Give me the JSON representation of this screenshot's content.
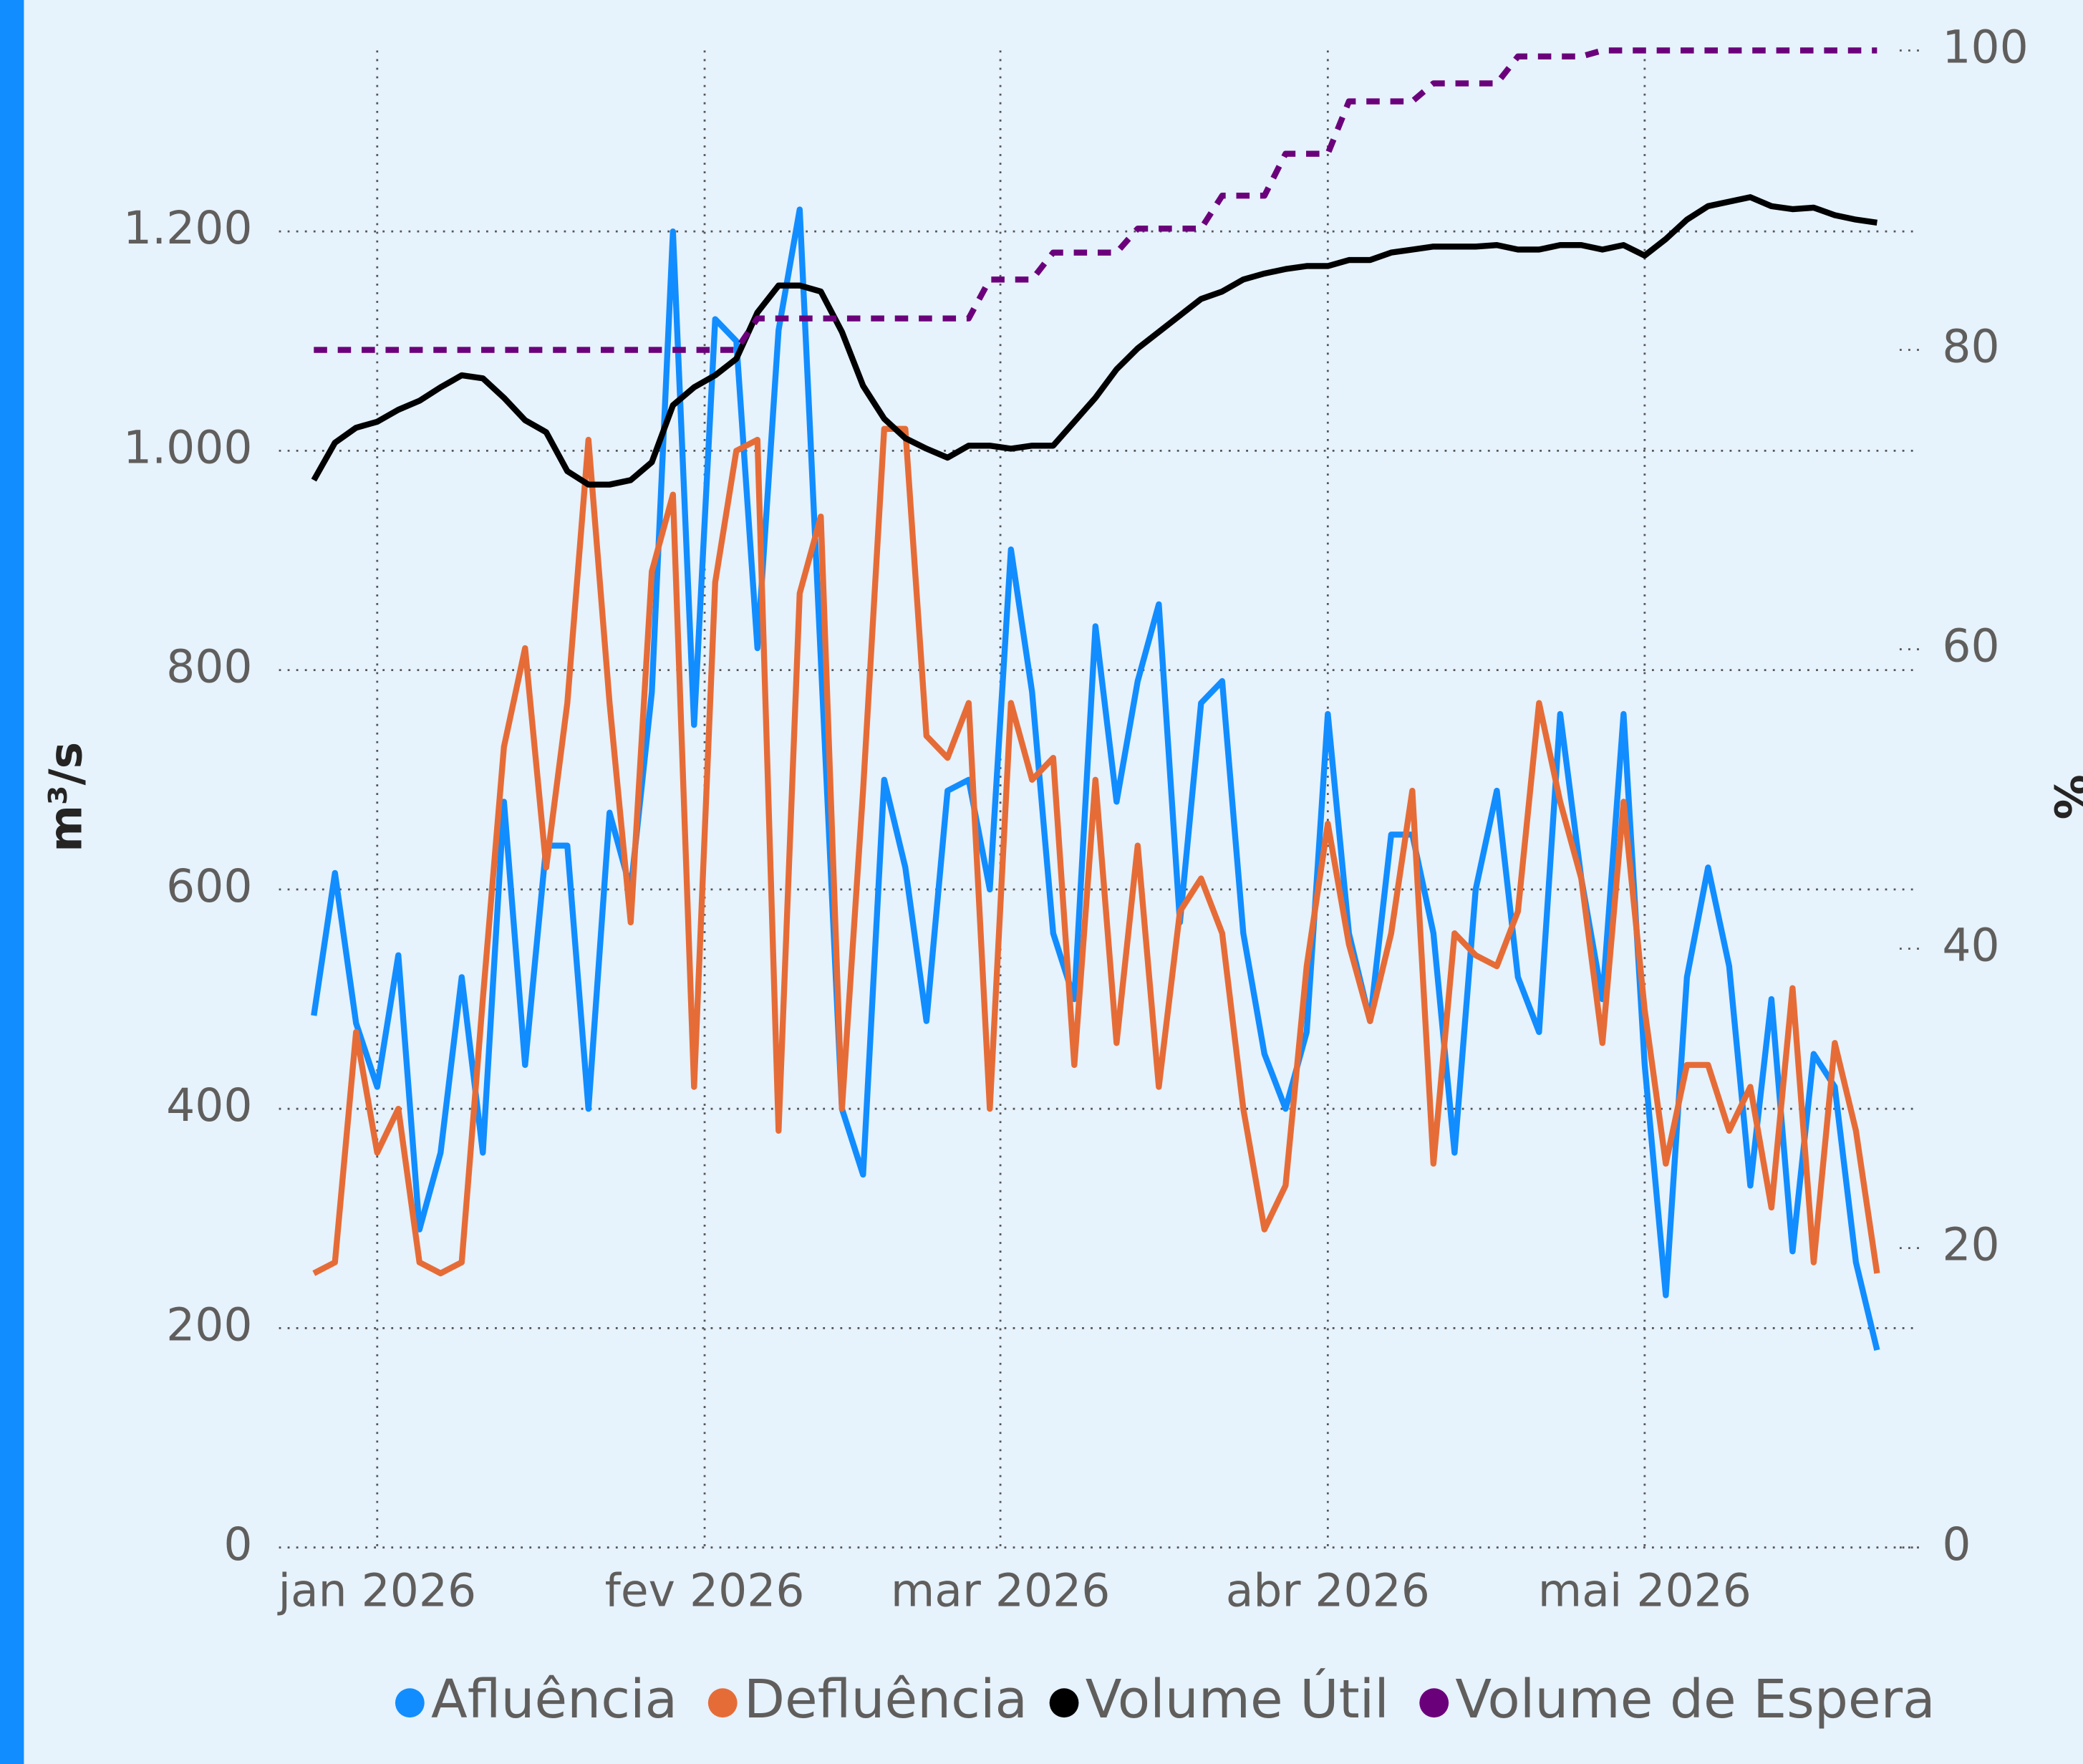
{
  "chart_data": {
    "type": "line",
    "x": [
      -6,
      -4,
      -2,
      0,
      2,
      4,
      6,
      8,
      10,
      12,
      14,
      16,
      18,
      20,
      22,
      24,
      26,
      28,
      30,
      32,
      34,
      36,
      38,
      40,
      42,
      44,
      46,
      48,
      50,
      52,
      54,
      56,
      58,
      60,
      62,
      64,
      66,
      68,
      70,
      72,
      74,
      76,
      78,
      80,
      82,
      84,
      86,
      88,
      90,
      92,
      94,
      96,
      98,
      100,
      102,
      104,
      106,
      108,
      110,
      112,
      114,
      116,
      118,
      120,
      122,
      124,
      126,
      128,
      130,
      132,
      134,
      136,
      138,
      140,
      142
    ],
    "xlim": [
      -9.3,
      145.4
    ],
    "xticks": [
      {
        "value": 0,
        "label": "jan 2026"
      },
      {
        "value": 31,
        "label": "fev 2026"
      },
      {
        "value": 59,
        "label": "mar 2026"
      },
      {
        "value": 90,
        "label": "abr 2026"
      },
      {
        "value": 120,
        "label": "mai 2026"
      }
    ],
    "ylabel": "m³/s",
    "y2label": "%",
    "ylim": [
      0,
      1365
    ],
    "yticks": [
      0,
      200,
      400,
      600,
      800,
      {
        "value": 1000,
        "label": "1.000"
      },
      {
        "value": 1200,
        "label": "1.200"
      }
    ],
    "y2lim": [
      0,
      100
    ],
    "y2ticks": [
      0,
      20,
      40,
      60,
      80,
      100
    ],
    "grid": true,
    "legend": "bottom",
    "series": [
      {
        "name": "Afluência",
        "color": "#118dff",
        "values": [
          485,
          615,
          478,
          420,
          540,
          290,
          360,
          520,
          360,
          680,
          440,
          640,
          640,
          400,
          670,
          600,
          780,
          1200,
          750,
          1120,
          1100,
          820,
          1110,
          1220,
          810,
          400,
          340,
          700,
          620,
          480,
          690,
          700,
          600,
          910,
          780,
          560,
          500,
          840,
          680,
          790,
          860,
          570,
          770,
          790,
          560,
          450,
          400,
          470,
          760,
          560,
          480,
          650,
          650,
          560,
          360,
          600,
          690,
          520,
          470,
          760,
          610,
          500,
          760,
          440,
          230,
          520,
          620,
          530,
          330,
          500,
          270,
          450,
          420,
          260,
          180
        ]
      },
      {
        "name": "Defluência",
        "color": "#e66c37",
        "values": [
          250,
          260,
          470,
          360,
          400,
          260,
          250,
          260,
          500,
          730,
          820,
          620,
          770,
          1010,
          770,
          570,
          890,
          960,
          420,
          880,
          1000,
          1010,
          380,
          870,
          940,
          400,
          690,
          1020,
          1020,
          740,
          720,
          770,
          400,
          770,
          700,
          720,
          440,
          700,
          460,
          640,
          420,
          580,
          610,
          560,
          400,
          290,
          330,
          530,
          660,
          550,
          480,
          560,
          690,
          350,
          560,
          540,
          530,
          580,
          770,
          680,
          610,
          460,
          680,
          490,
          350,
          440,
          440,
          380,
          420,
          310,
          510,
          260,
          460,
          380,
          250
        ]
      },
      {
        "name": "Volume Útil",
        "color": "#000000",
        "axis": "y2",
        "values": [
          71.3,
          73.8,
          74.8,
          75.2,
          76.0,
          76.6,
          77.5,
          78.3,
          78.1,
          76.8,
          75.3,
          74.5,
          71.9,
          71.0,
          71.0,
          71.3,
          72.5,
          76.3,
          77.5,
          78.3,
          79.4,
          82.5,
          84.3,
          84.3,
          83.9,
          81.2,
          77.6,
          75.4,
          74.1,
          73.4,
          72.8,
          73.6,
          73.6,
          73.4,
          73.6,
          73.6,
          75.2,
          76.8,
          78.7,
          80.1,
          81.2,
          82.3,
          83.4,
          83.9,
          84.7,
          85.1,
          85.4,
          85.6,
          85.6,
          86.0,
          86.0,
          86.5,
          86.7,
          86.9,
          86.9,
          86.9,
          87.0,
          86.7,
          86.7,
          87.0,
          87.0,
          86.7,
          87.0,
          86.3,
          87.4,
          88.7,
          89.6,
          89.9,
          90.2,
          89.6,
          89.4,
          89.5,
          89.0,
          88.7,
          88.5
        ]
      },
      {
        "name": "Volume de Espera",
        "color": "#6b007b",
        "axis": "y2",
        "style": "dashed",
        "values": [
          80,
          80,
          80,
          80,
          80,
          80,
          80,
          80,
          80,
          80,
          80,
          80,
          80,
          80,
          80,
          80,
          80,
          80,
          80,
          80,
          80,
          82.1,
          82.1,
          82.1,
          82.1,
          82.1,
          82.1,
          82.1,
          82.1,
          82.1,
          82.1,
          82.1,
          84.7,
          84.7,
          84.7,
          86.5,
          86.5,
          86.5,
          86.5,
          88.1,
          88.1,
          88.1,
          88.1,
          90.3,
          90.3,
          90.3,
          93.1,
          93.1,
          93.1,
          96.6,
          96.6,
          96.6,
          96.6,
          97.8,
          97.8,
          97.8,
          97.8,
          99.6,
          99.6,
          99.6,
          99.6,
          100,
          100,
          100,
          100,
          100,
          100,
          100,
          100,
          100,
          100,
          100,
          100,
          100,
          100
        ]
      }
    ]
  }
}
